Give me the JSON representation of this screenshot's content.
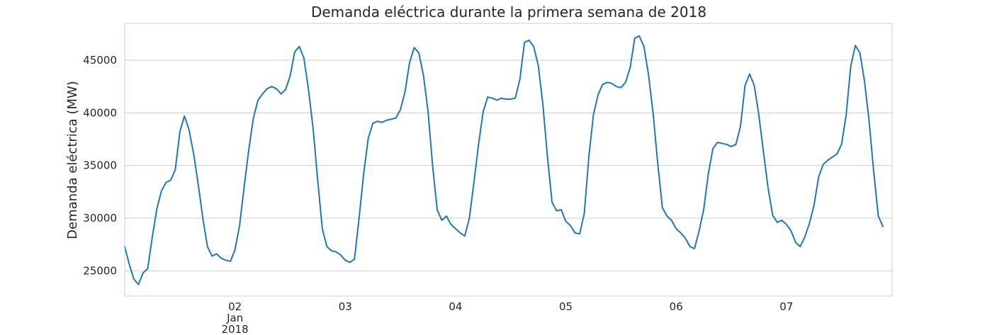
{
  "chart_data": {
    "type": "line",
    "title": "Demanda eléctrica durante la primera semana de 2018",
    "xlabel": "",
    "ylabel": "Demanda eléctrica (MW)",
    "xlim": [
      "2018-01-01 00:00",
      "2018-01-07 23:00"
    ],
    "ylim": [
      22600,
      48500
    ],
    "grid": true,
    "grid_axis": "y",
    "x_tick_dates": [
      "2018-01-02",
      "2018-01-03",
      "2018-01-04",
      "2018-01-05",
      "2018-01-06",
      "2018-01-07"
    ],
    "x_tick_labels": [
      [
        "02",
        "Jan",
        "2018"
      ],
      [
        "03"
      ],
      [
        "04"
      ],
      [
        "05"
      ],
      [
        "06"
      ],
      [
        "07"
      ]
    ],
    "y_ticks": [
      25000,
      30000,
      35000,
      40000,
      45000
    ],
    "y_tick_labels": [
      "25000",
      "30000",
      "35000",
      "40000",
      "45000"
    ],
    "series": [
      {
        "color": "#1f77b4",
        "x_start": "2018-01-01 00:00",
        "x_step": "1 hour",
        "values": [
          27300,
          25600,
          24200,
          23700,
          24800,
          25200,
          28200,
          30900,
          32600,
          33400,
          33600,
          34600,
          38200,
          39700,
          38400,
          36100,
          33200,
          30000,
          27300,
          26400,
          26600,
          26200,
          26000,
          25900,
          27000,
          29300,
          33000,
          36500,
          39500,
          41200,
          41800,
          42300,
          42500,
          42300,
          41800,
          42200,
          43500,
          45800,
          46300,
          45200,
          42200,
          38500,
          33600,
          29000,
          27300,
          26900,
          26800,
          26500,
          26000,
          25800,
          26100,
          30000,
          34200,
          37600,
          39000,
          39200,
          39100,
          39300,
          39400,
          39500,
          40300,
          42000,
          44800,
          46200,
          45700,
          43600,
          40200,
          35000,
          30800,
          29800,
          30200,
          29400,
          29000,
          28600,
          28300,
          30000,
          33400,
          37000,
          40100,
          41500,
          41400,
          41200,
          41400,
          41300,
          41300,
          41400,
          43200,
          46700,
          46900,
          46300,
          44500,
          40800,
          35800,
          31500,
          30700,
          30800,
          29700,
          29300,
          28600,
          28500,
          30400,
          35800,
          39800,
          41700,
          42700,
          42900,
          42800,
          42500,
          42400,
          42900,
          44300,
          47100,
          47300,
          46300,
          43600,
          39900,
          35200,
          31000,
          30200,
          29800,
          29000,
          28600,
          28100,
          27300,
          27100,
          28800,
          30800,
          34200,
          36600,
          37200,
          37100,
          37000,
          36800,
          37000,
          38700,
          42600,
          43700,
          42600,
          39800,
          36300,
          32900,
          30300,
          29600,
          29800,
          29400,
          28800,
          27700,
          27300,
          28200,
          29500,
          31200,
          33900,
          35100,
          35500,
          35800,
          36100,
          37000,
          39800,
          44400,
          46400,
          45700,
          43000,
          39200,
          34400,
          30200,
          29200
        ]
      }
    ]
  }
}
